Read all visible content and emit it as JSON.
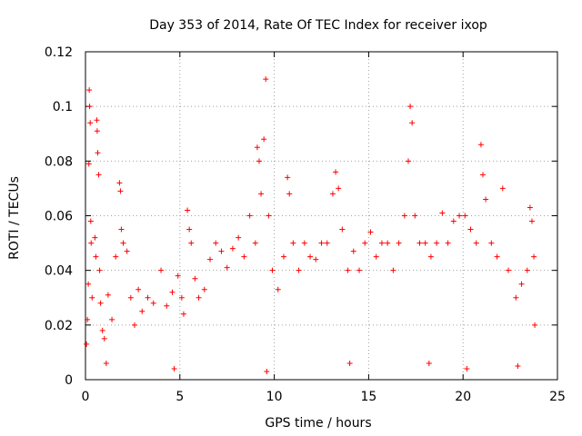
{
  "chart_data": {
    "type": "scatter",
    "title": "Day 353 of 2014, Rate Of TEC Index for receiver ixop",
    "xlabel": "GPS time / hours",
    "ylabel": "ROTI / TECUs",
    "xlim": [
      0,
      25
    ],
    "ylim": [
      0,
      0.12
    ],
    "xticks": [
      0,
      5,
      10,
      15,
      20,
      25
    ],
    "yticks": [
      0,
      0.02,
      0.04,
      0.06,
      0.08,
      0.1,
      0.12
    ],
    "xtick_labels": [
      "0",
      "5",
      "10",
      "15",
      "20",
      "25"
    ],
    "ytick_labels": [
      "0",
      "0.02",
      "0.04",
      "0.06",
      "0.08",
      "0.1",
      "0.12"
    ],
    "grid": true,
    "marker": "+",
    "color": "#ff0000",
    "series": [
      {
        "name": "ROTI",
        "points": [
          [
            0.05,
            0.013
          ],
          [
            0.1,
            0.022
          ],
          [
            0.15,
            0.035
          ],
          [
            0.18,
            0.079
          ],
          [
            0.2,
            0.106
          ],
          [
            0.22,
            0.1
          ],
          [
            0.25,
            0.094
          ],
          [
            0.28,
            0.058
          ],
          [
            0.3,
            0.05
          ],
          [
            0.35,
            0.03
          ],
          [
            0.5,
            0.052
          ],
          [
            0.55,
            0.045
          ],
          [
            0.6,
            0.095
          ],
          [
            0.62,
            0.091
          ],
          [
            0.65,
            0.083
          ],
          [
            0.7,
            0.075
          ],
          [
            0.75,
            0.04
          ],
          [
            0.8,
            0.028
          ],
          [
            0.9,
            0.018
          ],
          [
            1.0,
            0.015
          ],
          [
            1.2,
            0.031
          ],
          [
            1.4,
            0.022
          ],
          [
            1.6,
            0.045
          ],
          [
            1.8,
            0.072
          ],
          [
            1.85,
            0.069
          ],
          [
            1.9,
            0.055
          ],
          [
            2.0,
            0.05
          ],
          [
            2.2,
            0.047
          ],
          [
            2.4,
            0.03
          ],
          [
            2.6,
            0.02
          ],
          [
            2.8,
            0.033
          ],
          [
            3.0,
            0.025
          ],
          [
            3.3,
            0.03
          ],
          [
            3.6,
            0.028
          ],
          [
            4.0,
            0.04
          ],
          [
            4.3,
            0.027
          ],
          [
            4.6,
            0.032
          ],
          [
            4.9,
            0.038
          ],
          [
            5.1,
            0.03
          ],
          [
            5.2,
            0.024
          ],
          [
            5.4,
            0.062
          ],
          [
            5.5,
            0.055
          ],
          [
            5.6,
            0.05
          ],
          [
            5.8,
            0.037
          ],
          [
            6.0,
            0.03
          ],
          [
            6.3,
            0.033
          ],
          [
            6.6,
            0.044
          ],
          [
            6.9,
            0.05
          ],
          [
            7.2,
            0.047
          ],
          [
            7.5,
            0.041
          ],
          [
            7.8,
            0.048
          ],
          [
            8.1,
            0.052
          ],
          [
            8.4,
            0.045
          ],
          [
            8.7,
            0.06
          ],
          [
            9.0,
            0.05
          ],
          [
            9.1,
            0.085
          ],
          [
            9.2,
            0.08
          ],
          [
            9.3,
            0.068
          ],
          [
            9.45,
            0.088
          ],
          [
            9.55,
            0.11
          ],
          [
            9.7,
            0.06
          ],
          [
            9.9,
            0.04
          ],
          [
            10.2,
            0.033
          ],
          [
            10.5,
            0.045
          ],
          [
            10.7,
            0.074
          ],
          [
            10.8,
            0.068
          ],
          [
            11.0,
            0.05
          ],
          [
            11.3,
            0.04
          ],
          [
            11.6,
            0.05
          ],
          [
            11.9,
            0.045
          ],
          [
            12.2,
            0.044
          ],
          [
            12.5,
            0.05
          ],
          [
            12.8,
            0.05
          ],
          [
            13.1,
            0.068
          ],
          [
            13.25,
            0.076
          ],
          [
            13.4,
            0.07
          ],
          [
            13.6,
            0.055
          ],
          [
            13.9,
            0.04
          ],
          [
            14.2,
            0.047
          ],
          [
            14.5,
            0.04
          ],
          [
            14.8,
            0.05
          ],
          [
            15.1,
            0.054
          ],
          [
            15.4,
            0.045
          ],
          [
            15.7,
            0.05
          ],
          [
            16.0,
            0.05
          ],
          [
            16.3,
            0.04
          ],
          [
            16.6,
            0.05
          ],
          [
            16.9,
            0.06
          ],
          [
            17.1,
            0.08
          ],
          [
            17.2,
            0.1
          ],
          [
            17.3,
            0.094
          ],
          [
            17.45,
            0.06
          ],
          [
            17.7,
            0.05
          ],
          [
            18.0,
            0.05
          ],
          [
            18.3,
            0.045
          ],
          [
            18.6,
            0.05
          ],
          [
            18.9,
            0.061
          ],
          [
            19.2,
            0.05
          ],
          [
            19.5,
            0.058
          ],
          [
            19.8,
            0.06
          ],
          [
            20.1,
            0.06
          ],
          [
            20.4,
            0.055
          ],
          [
            20.7,
            0.05
          ],
          [
            20.95,
            0.086
          ],
          [
            21.05,
            0.075
          ],
          [
            21.2,
            0.066
          ],
          [
            21.5,
            0.05
          ],
          [
            21.8,
            0.045
          ],
          [
            22.1,
            0.07
          ],
          [
            22.4,
            0.04
          ],
          [
            22.8,
            0.03
          ],
          [
            23.1,
            0.035
          ],
          [
            23.4,
            0.04
          ],
          [
            23.55,
            0.063
          ],
          [
            23.65,
            0.058
          ],
          [
            23.75,
            0.045
          ],
          [
            23.8,
            0.02
          ],
          [
            1.1,
            0.006
          ],
          [
            4.7,
            0.004
          ],
          [
            9.6,
            0.003
          ],
          [
            14.0,
            0.006
          ],
          [
            18.2,
            0.006
          ],
          [
            20.2,
            0.004
          ],
          [
            22.9,
            0.005
          ]
        ]
      }
    ]
  }
}
